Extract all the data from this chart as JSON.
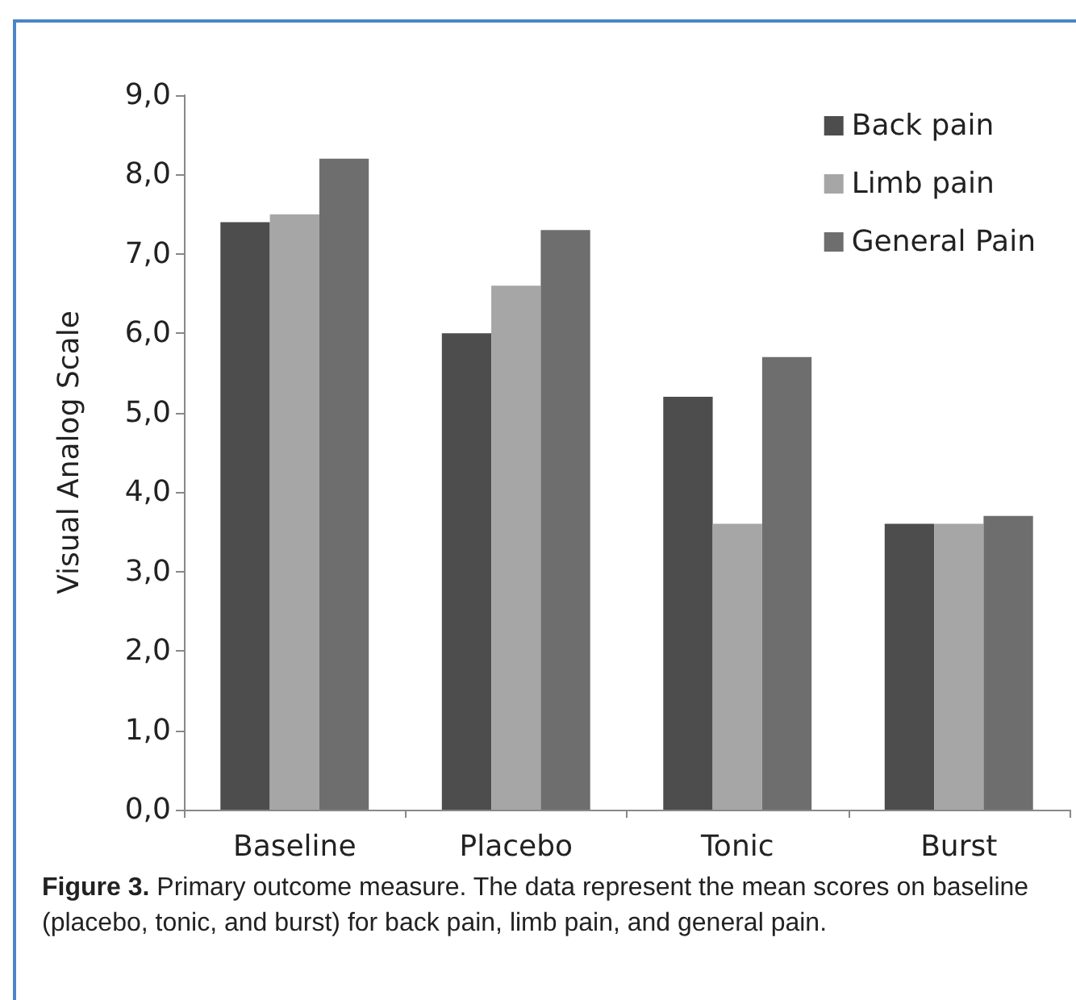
{
  "chart_data": {
    "type": "bar",
    "ylabel": "Visual Analog Scale",
    "categories": [
      "Baseline",
      "Placebo",
      "Tonic",
      "Burst"
    ],
    "series": [
      {
        "name": "Back pain",
        "color": "#4d4d4d",
        "values": [
          7.4,
          6.0,
          5.2,
          3.6
        ]
      },
      {
        "name": "Limb pain",
        "color": "#a6a6a6",
        "values": [
          7.5,
          6.6,
          3.6,
          3.6
        ]
      },
      {
        "name": "General Pain",
        "color": "#6e6e6e",
        "values": [
          8.2,
          7.3,
          5.7,
          3.7
        ]
      }
    ],
    "ylim": [
      0,
      9
    ],
    "yticks": [
      {
        "value": 0,
        "label": "0,0"
      },
      {
        "value": 1,
        "label": "1,0"
      },
      {
        "value": 2,
        "label": "2,0"
      },
      {
        "value": 3,
        "label": "3,0"
      },
      {
        "value": 4,
        "label": "4,0"
      },
      {
        "value": 5,
        "label": "5,0"
      },
      {
        "value": 6,
        "label": "6,0"
      },
      {
        "value": 7,
        "label": "7,0"
      },
      {
        "value": 8,
        "label": "8,0"
      },
      {
        "value": 9,
        "label": "9,0"
      }
    ],
    "legend": "top right",
    "grid": false,
    "annotations": [
      "Figure 3.",
      "Primary outcome measure. The data represent the mean scores on baseline (placebo, tonic, and burst) for back pain, limb pain, and general pain."
    ]
  }
}
